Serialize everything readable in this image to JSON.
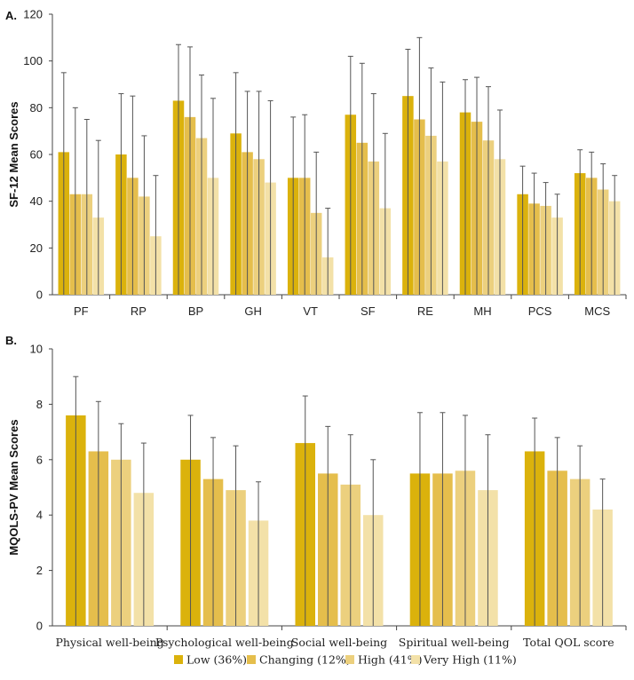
{
  "legend": {
    "entries": [
      "Low (36%)",
      "Changing (12%)",
      "High (41%)",
      "Very High (11%)"
    ],
    "colors": [
      "#dbb20c",
      "#e5be4c",
      "#ecd07e",
      "#f3e1a8"
    ]
  },
  "chart_data": [
    {
      "type": "bar",
      "panel_label": "A.",
      "title": "",
      "xlabel": "",
      "ylabel": "SF-12 Mean Scores",
      "ylim": [
        0,
        120
      ],
      "yticks": [
        0,
        20,
        40,
        60,
        80,
        100,
        120
      ],
      "categories": [
        "PF",
        "RP",
        "BP",
        "GH",
        "VT",
        "SF",
        "RE",
        "MH",
        "PCS",
        "MCS"
      ],
      "series": [
        {
          "name": "Low (36%)",
          "values": [
            61,
            60,
            83,
            69,
            50,
            77,
            85,
            78,
            43,
            52
          ],
          "error_upper": [
            95,
            86,
            107,
            95,
            76,
            102,
            105,
            92,
            55,
            62
          ]
        },
        {
          "name": "Changing (12%)",
          "values": [
            43,
            50,
            76,
            61,
            50,
            65,
            75,
            74,
            39,
            50
          ],
          "error_upper": [
            80,
            85,
            106,
            87,
            77,
            99,
            110,
            93,
            52,
            61
          ]
        },
        {
          "name": "High (41%)",
          "values": [
            43,
            42,
            67,
            58,
            35,
            57,
            68,
            66,
            38,
            45
          ],
          "error_upper": [
            75,
            68,
            94,
            87,
            61,
            86,
            97,
            89,
            48,
            56
          ]
        },
        {
          "name": "Very High (11%)",
          "values": [
            33,
            25,
            50,
            48,
            16,
            37,
            57,
            58,
            33,
            40
          ],
          "error_upper": [
            66,
            51,
            84,
            83,
            37,
            69,
            91,
            79,
            43,
            51
          ]
        }
      ]
    },
    {
      "type": "bar",
      "panel_label": "B.",
      "title": "",
      "xlabel": "",
      "ylabel": "MQOLS-PV Mean Scores",
      "ylim": [
        0,
        10
      ],
      "yticks": [
        0,
        2,
        4,
        6,
        8,
        10
      ],
      "categories": [
        "Physical well-being",
        "Psychological well-being",
        "Social well-being",
        "Spiritual well-being",
        "Total QOL score"
      ],
      "series": [
        {
          "name": "Low (36%)",
          "values": [
            7.6,
            6.0,
            6.6,
            5.5,
            6.3
          ],
          "error_upper": [
            9.0,
            7.6,
            8.3,
            7.7,
            7.5
          ]
        },
        {
          "name": "Changing (12%)",
          "values": [
            6.3,
            5.3,
            5.5,
            5.5,
            5.6
          ],
          "error_upper": [
            8.1,
            6.8,
            7.2,
            7.7,
            6.8
          ]
        },
        {
          "name": "High (41%)",
          "values": [
            6.0,
            4.9,
            5.1,
            5.6,
            5.3
          ],
          "error_upper": [
            7.3,
            6.5,
            6.9,
            7.6,
            6.5
          ]
        },
        {
          "name": "Very High (11%)",
          "values": [
            4.8,
            3.8,
            4.0,
            4.9,
            4.2
          ],
          "error_upper": [
            6.6,
            5.2,
            6.0,
            6.9,
            5.3
          ]
        }
      ]
    }
  ]
}
